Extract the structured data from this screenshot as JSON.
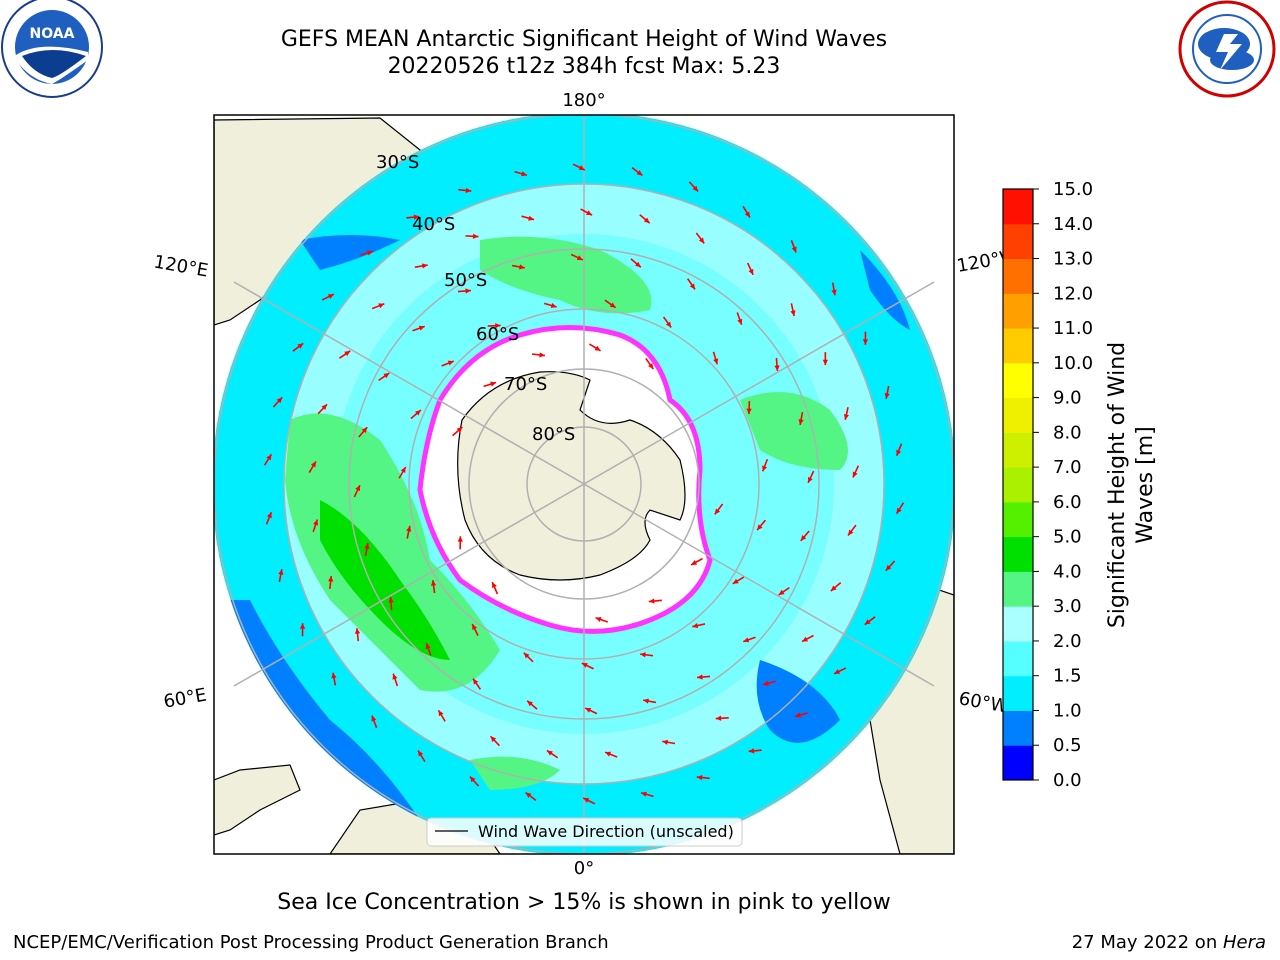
{
  "header": {
    "title_line1": "GEFS MEAN Antarctic Significant Height of Wind Waves",
    "title_line2": "20220526 t12z 384h fcst   Max: 5.23"
  },
  "logos": {
    "left": {
      "name": "NOAA",
      "ring_text": "NATIONAL OCEANIC AND ATMOSPHERIC ADMINISTRATION · U.S. DEPARTMENT OF COMMERCE"
    },
    "right": {
      "name": "NATIONAL WEATHER SERVICE"
    }
  },
  "map": {
    "lon_labels": {
      "top": "180°",
      "bottom": "0°",
      "left_upper": "120°E",
      "left_lower": "60°E",
      "right_upper": "120°W",
      "right_lower": "60°W"
    },
    "lat_labels": [
      "30°S",
      "40°S",
      "50°S",
      "60°S",
      "70°S",
      "80°S"
    ],
    "legend_label": "Wind Wave Direction (unscaled)",
    "colors": {
      "land": "#efefdc",
      "ice": "#ffffff",
      "ice_edge": "#ff33ff",
      "arrow": "#ff0000"
    }
  },
  "colorbar": {
    "label_line1": "Significant Height of Wind",
    "label_line2": "Waves [m]",
    "ticks": [
      "0.0",
      "0.5",
      "1.0",
      "1.5",
      "2.0",
      "3.0",
      "4.0",
      "5.0",
      "6.0",
      "7.0",
      "8.0",
      "9.0",
      "10.0",
      "11.0",
      "12.0",
      "13.0",
      "14.0",
      "15.0"
    ],
    "bins": [
      {
        "from": "0.0",
        "to": "0.5",
        "color": "#0000ff"
      },
      {
        "from": "0.5",
        "to": "1.0",
        "color": "#0080ff"
      },
      {
        "from": "1.0",
        "to": "1.5",
        "color": "#00eeff"
      },
      {
        "from": "1.5",
        "to": "2.0",
        "color": "#55ffff"
      },
      {
        "from": "2.0",
        "to": "3.0",
        "color": "#aaffff"
      },
      {
        "from": "3.0",
        "to": "4.0",
        "color": "#55f585"
      },
      {
        "from": "4.0",
        "to": "5.0",
        "color": "#00e000"
      },
      {
        "from": "5.0",
        "to": "6.0",
        "color": "#55f000"
      },
      {
        "from": "6.0",
        "to": "7.0",
        "color": "#aaf000"
      },
      {
        "from": "7.0",
        "to": "8.0",
        "color": "#ccf000"
      },
      {
        "from": "8.0",
        "to": "9.0",
        "color": "#eef000"
      },
      {
        "from": "9.0",
        "to": "10.0",
        "color": "#ffff00"
      },
      {
        "from": "10.0",
        "to": "11.0",
        "color": "#ffcc00"
      },
      {
        "from": "11.0",
        "to": "12.0",
        "color": "#ffa000"
      },
      {
        "from": "12.0",
        "to": "13.0",
        "color": "#ff7000"
      },
      {
        "from": "13.0",
        "to": "14.0",
        "color": "#ff4000"
      },
      {
        "from": "14.0",
        "to": "15.0",
        "color": "#ff1000"
      }
    ]
  },
  "footer": {
    "note": "Sea Ice Concentration > 15% is shown in pink to yellow",
    "left": "NCEP/EMC/Verification Post Processing Product Generation Branch",
    "right_prefix": "27 May 2022 on ",
    "right_machine": "Hera"
  }
}
